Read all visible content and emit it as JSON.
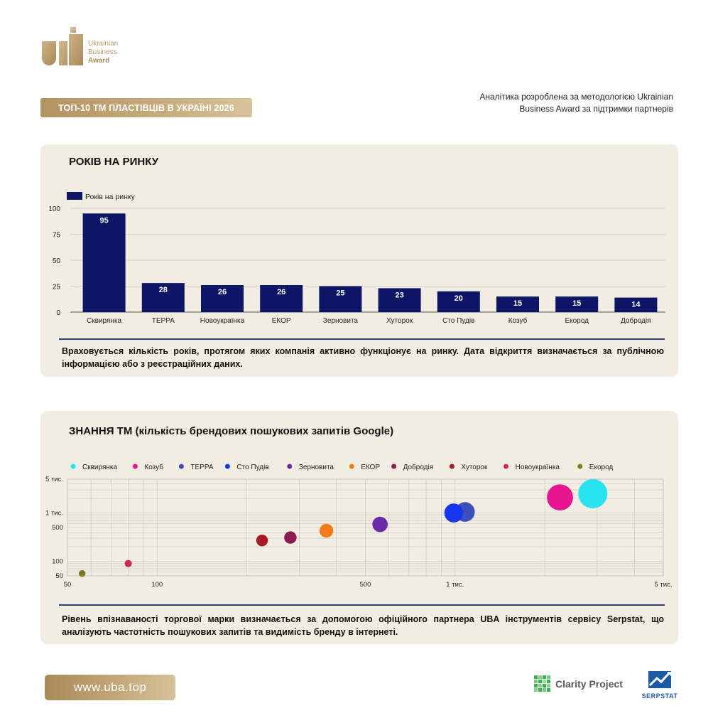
{
  "logo": {
    "line1": "Ukrainian",
    "line2": "Business",
    "line3": "Award"
  },
  "header": {
    "badge": "ТОП-10 ТМ ПЛАСТІВЦІВ В УКРАЇНІ 2026",
    "note_line1": "Аналітика розроблена за методологією Ukrainian",
    "note_line2": "Business Award за підтримки партнерів"
  },
  "colors": {
    "navy": "#0c1566",
    "panel": "#f1ede2",
    "gold": "#b8996a"
  },
  "chart_data": [
    {
      "type": "bar",
      "title": "РОКІВ НА РИНКУ",
      "legend": "Років на ринку",
      "legend_position": "top-left",
      "categories": [
        "Сквирянка",
        "ТЕРРА",
        "Новоукраїнка",
        "ЕКОР",
        "Зерновита",
        "Хуторок",
        "Сто Пудів",
        "Козуб",
        "Екород",
        "Добродія"
      ],
      "series": [
        {
          "name": "Років на ринку",
          "values": [
            95,
            28,
            26,
            26,
            25,
            23,
            20,
            15,
            15,
            14
          ]
        }
      ],
      "ylim": [
        0,
        100
      ],
      "yticks": [
        0,
        25,
        50,
        75,
        100
      ],
      "grid": true,
      "color": "#0c1566"
    },
    {
      "type": "scatter",
      "title": "ЗНАННЯ ТМ (кількість брендових пошукових запитів Google)",
      "x_scale": "log",
      "y_scale": "log",
      "xlim": [
        50,
        5000
      ],
      "ylim": [
        50,
        5000
      ],
      "xticks": [
        {
          "v": 50,
          "label": "50"
        },
        {
          "v": 100,
          "label": "100"
        },
        {
          "v": 500,
          "label": "500"
        },
        {
          "v": 1000,
          "label": "1 тис."
        },
        {
          "v": 5000,
          "label": "5 тис."
        }
      ],
      "yticks": [
        {
          "v": 50,
          "label": "50"
        },
        {
          "v": 100,
          "label": "100"
        },
        {
          "v": 500,
          "label": "500"
        },
        {
          "v": 1000,
          "label": "1 тис."
        },
        {
          "v": 5000,
          "label": "5 тис."
        }
      ],
      "legend_position": "top",
      "series": [
        {
          "name": "Сквирянка",
          "color": "#27e3ef",
          "x": 2900,
          "y": 2500,
          "size": 3000
        },
        {
          "name": "Козуб",
          "color": "#e5168f",
          "x": 2250,
          "y": 2100,
          "size": 2300
        },
        {
          "name": "ТЕРРА",
          "color": "#3d4fb8",
          "x": 1080,
          "y": 1050,
          "size": 1100
        },
        {
          "name": "Сто Пудів",
          "color": "#1836f0",
          "x": 990,
          "y": 1000,
          "size": 1000
        },
        {
          "name": "Зерновита",
          "color": "#6b2aa8",
          "x": 560,
          "y": 580,
          "size": 560
        },
        {
          "name": "ЕКОР",
          "color": "#f57a1a",
          "x": 370,
          "y": 430,
          "size": 400
        },
        {
          "name": "Добродія",
          "color": "#8b1a55",
          "x": 280,
          "y": 310,
          "size": 280
        },
        {
          "name": "Хуторок",
          "color": "#a81a22",
          "x": 225,
          "y": 270,
          "size": 230
        },
        {
          "name": "Новоукраїнка",
          "color": "#cc2a55",
          "x": 80,
          "y": 90,
          "size": 80
        },
        {
          "name": "Екород",
          "color": "#7f7a1f",
          "x": 56,
          "y": 56,
          "size": 55
        }
      ]
    }
  ],
  "panel1": {
    "title": "РОКІВ НА РИНКУ",
    "legend": "Років на ринку",
    "desc": "Враховується кількість років, протягом яких компанія активно функціонує на ринку. Дата відкриття визначається за публічною інформацією або з реєстраційних даних."
  },
  "panel2": {
    "title": "ЗНАННЯ ТМ (кількість брендових пошукових запитів Google)",
    "desc": "Рівень впізнаваності торгової марки визначається за допомогою офіційного партнера UBA інструментів сервісу Serpstat, що аналізують частотність пошукових запитів та видимість бренду в інтернеті."
  },
  "footer": {
    "url": "www.uba.top",
    "partner1": "Clarity Project",
    "partner2": "SERPSTAT"
  }
}
